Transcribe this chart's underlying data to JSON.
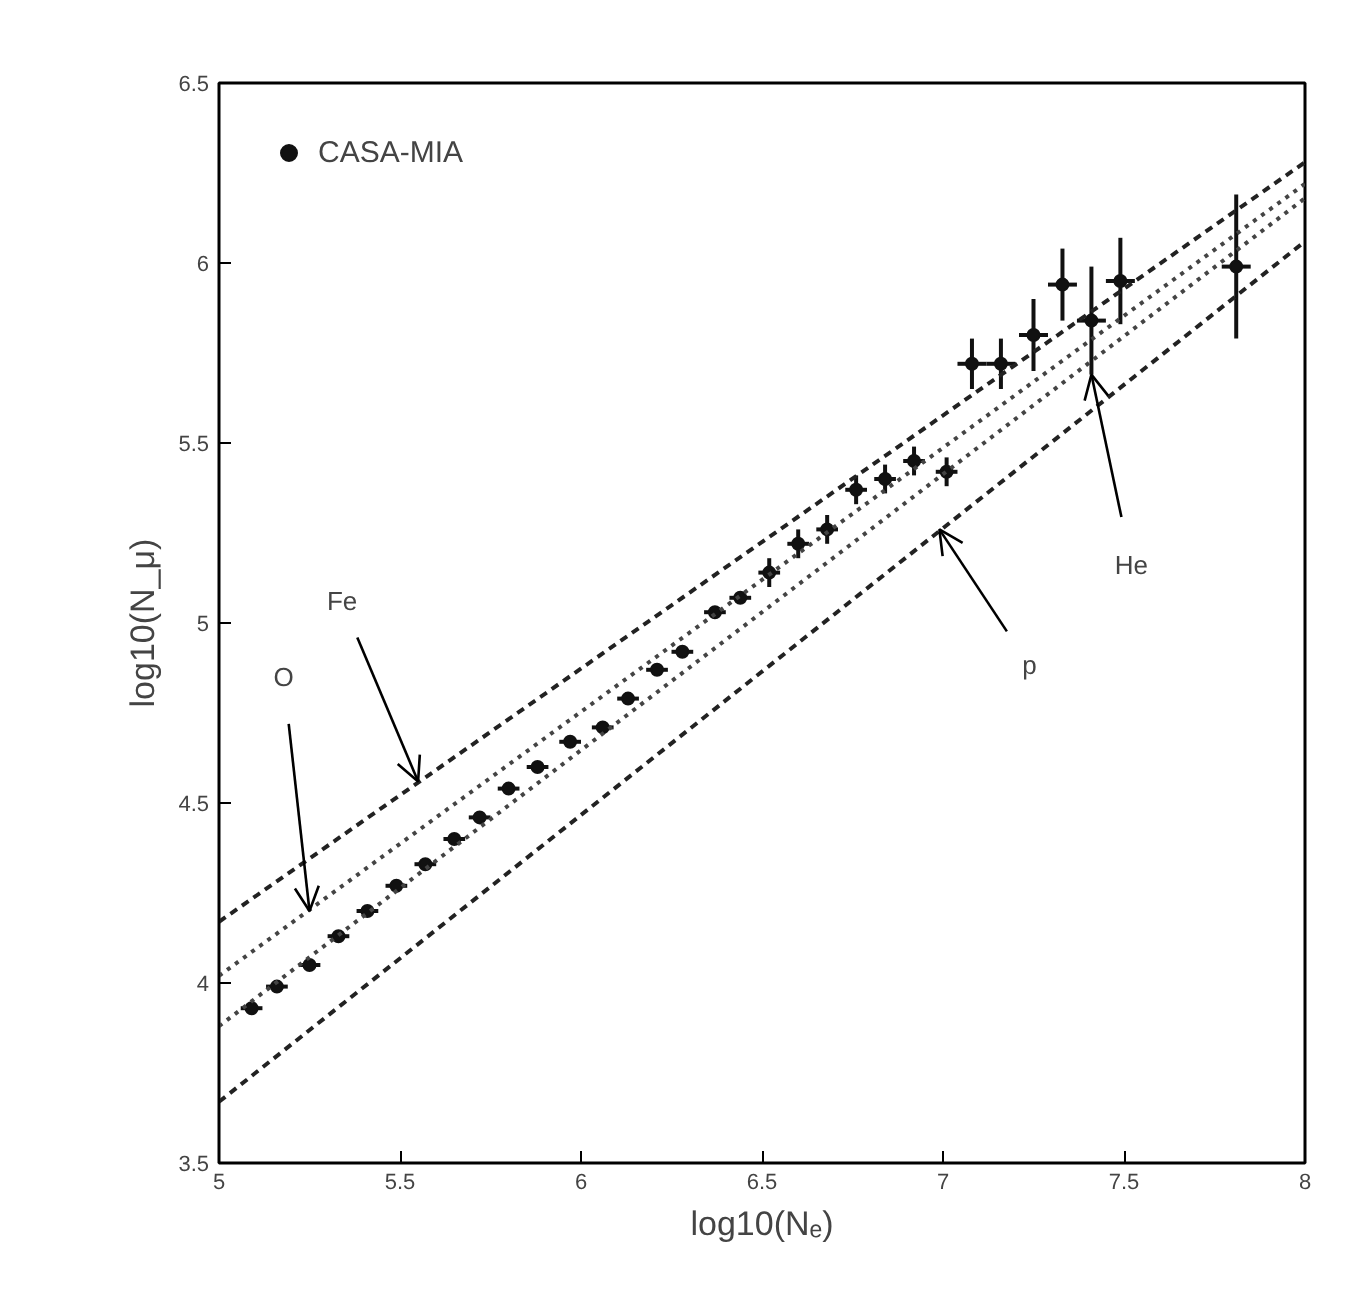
{
  "chart_data": {
    "type": "scatter",
    "xlabel": "log10(Nₑ)",
    "ylabel": "log10(N_μ)",
    "xlim": [
      5,
      8
    ],
    "ylim": [
      3.5,
      6.5
    ],
    "xticks": [
      5,
      5.5,
      6,
      6.5,
      7,
      7.5,
      8
    ],
    "yticks": [
      3.5,
      4,
      4.5,
      5,
      5.5,
      6,
      6.5
    ],
    "grid": false,
    "legend": "top left",
    "series": [
      {
        "name": "CASA-MIA",
        "marker": "circle",
        "color": "#111111",
        "x": [
          5.09,
          5.16,
          5.25,
          5.33,
          5.41,
          5.49,
          5.57,
          5.65,
          5.72,
          5.8,
          5.88,
          5.97,
          6.06,
          6.13,
          6.21,
          6.28,
          6.37,
          6.44,
          6.52,
          6.6,
          6.68,
          6.76,
          6.84,
          6.92,
          7.01,
          7.08,
          7.16,
          7.25,
          7.33,
          7.41,
          7.49,
          7.81
        ],
        "values": [
          3.93,
          3.99,
          4.05,
          4.13,
          4.2,
          4.27,
          4.33,
          4.4,
          4.46,
          4.54,
          4.6,
          4.67,
          4.71,
          4.79,
          4.87,
          4.92,
          5.03,
          5.07,
          5.14,
          5.22,
          5.26,
          5.37,
          5.4,
          5.45,
          5.42,
          5.72,
          5.72,
          5.8,
          5.94,
          5.84,
          5.95,
          5.99
        ],
        "errors": [
          null,
          null,
          null,
          null,
          null,
          null,
          null,
          null,
          null,
          null,
          null,
          null,
          null,
          null,
          null,
          null,
          null,
          null,
          0.04,
          0.04,
          0.04,
          0.04,
          0.04,
          0.04,
          0.04,
          0.07,
          0.07,
          0.1,
          0.1,
          0.15,
          0.12,
          0.2
        ],
        "xerrors": [
          0.03,
          0.03,
          0.03,
          0.03,
          0.03,
          0.03,
          0.03,
          0.03,
          0.03,
          0.03,
          0.03,
          0.03,
          0.03,
          0.03,
          0.03,
          0.03,
          0.03,
          0.03,
          0.03,
          0.03,
          0.03,
          0.03,
          0.03,
          0.03,
          0.03,
          0.04,
          0.04,
          0.04,
          0.04,
          0.04,
          0.04,
          0.04
        ]
      },
      {
        "type": "line",
        "color": "#222222",
        "line_style": "dashed",
        "x": [
          5,
          8
        ],
        "values": [
          4.17,
          6.28
        ]
      },
      {
        "type": "line",
        "color": "#444444",
        "line_style": "dotted",
        "x": [
          5,
          8
        ],
        "values": [
          4.02,
          6.22
        ]
      },
      {
        "type": "line",
        "color": "#444444",
        "line_style": "dotted",
        "x": [
          5,
          8
        ],
        "values": [
          3.88,
          6.18
        ]
      },
      {
        "type": "line",
        "color": "#222222",
        "line_style": "dashed",
        "x": [
          5,
          8
        ],
        "values": [
          3.67,
          6.06
        ]
      }
    ],
    "annotations": [
      {
        "text": "Fe",
        "x": 5.55,
        "y": 4.56
      },
      {
        "text": "O",
        "x": 5.25,
        "y": 4.2
      },
      {
        "text": "He",
        "x": 7.41,
        "y": 5.69
      },
      {
        "text": "p",
        "x": 6.99,
        "y": 5.26
      }
    ]
  }
}
